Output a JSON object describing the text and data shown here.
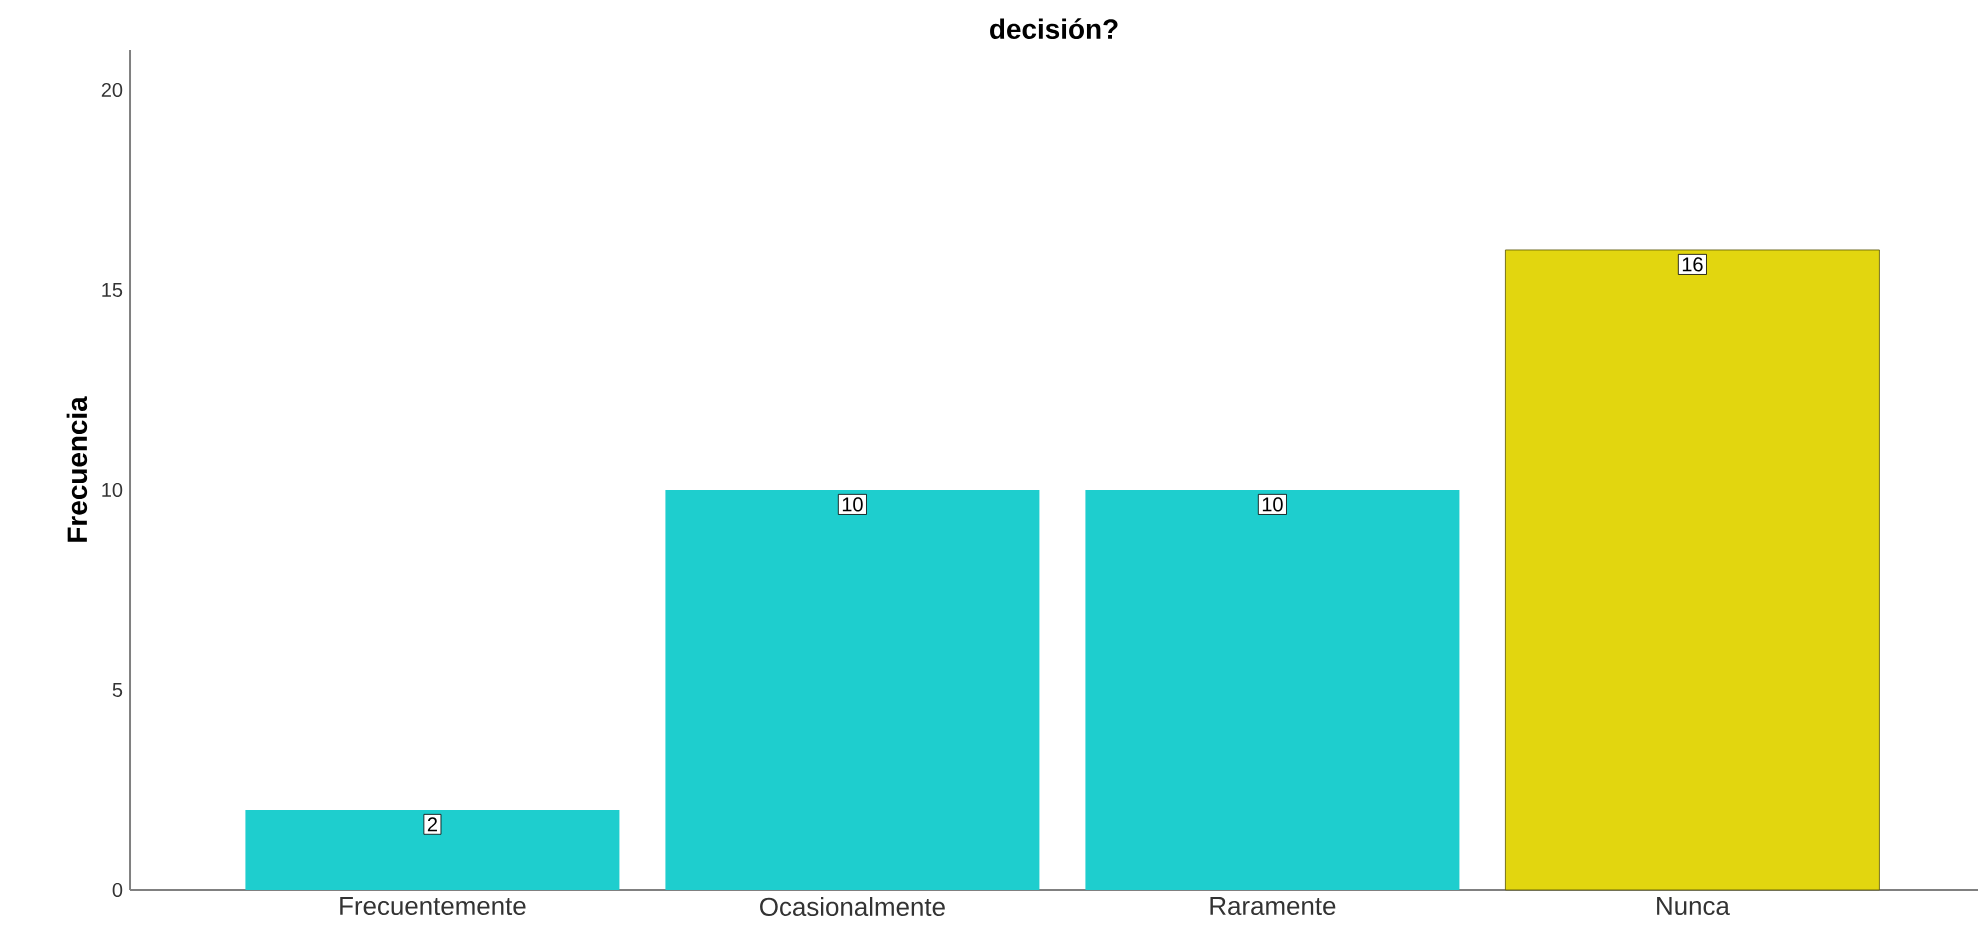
{
  "chart_data": {
    "type": "bar",
    "title": "decisión?",
    "ylabel": "Frecuencia",
    "categories": [
      "Frecuentemente",
      "Ocasionalmente",
      "Raramente",
      "Nunca"
    ],
    "values": [
      2,
      10,
      10,
      16
    ],
    "colors": [
      "#1ecece",
      "#1ecece",
      "#1ecece",
      "#e2d60f"
    ],
    "ylim": [
      0,
      21
    ],
    "yticks": [
      0,
      5,
      10,
      15,
      20
    ],
    "grid": false,
    "data_labels": true
  }
}
